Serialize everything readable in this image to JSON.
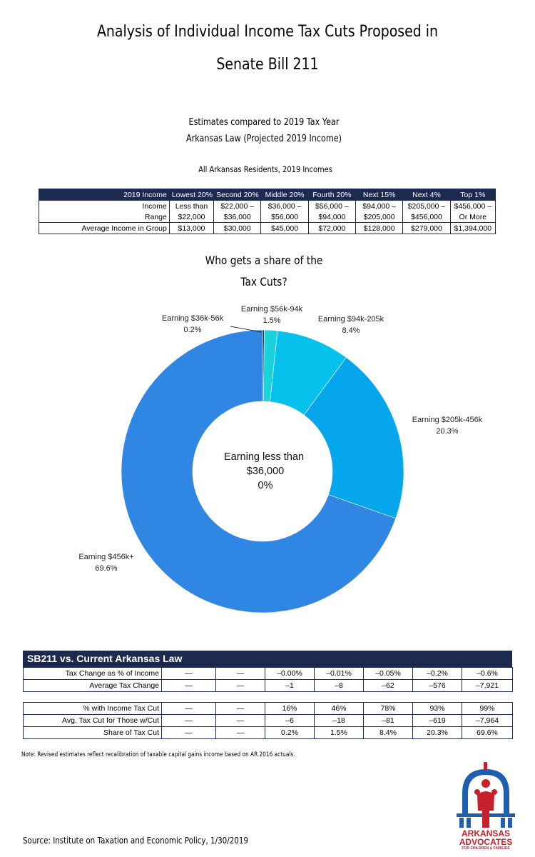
{
  "title": {
    "line1": "Analysis of Individual Income Tax Cuts Proposed in",
    "line2": "Senate Bill 211"
  },
  "subtitle": {
    "line1": "Estimates compared to 2019 Tax Year",
    "line2": "Arkansas Law (Projected 2019 Income)",
    "line3": "All Arkansas Residents, 2019 Incomes"
  },
  "income_table": {
    "header": [
      "2019 Income",
      "Lowest 20%",
      "Second 20%",
      "Middle 20%",
      "Fourth 20%",
      "Next 15%",
      "Next 4%",
      "Top 1%"
    ],
    "rows": [
      [
        "Income",
        "Less than",
        "$22,000 –",
        "$36,000 –",
        "$56,000 –",
        "$94,000 –",
        "$205,000 –",
        "$456,000 –"
      ],
      [
        "Range",
        "$22,000",
        "$36,000",
        "$56,000",
        "$94,000",
        "$205,000",
        "$456,000",
        "Or More"
      ],
      [
        "Average Income in Group",
        "$13,000",
        "$30,000",
        "$45,000",
        "$72,000",
        "$128,000",
        "$279,000",
        "$1,394,000"
      ]
    ]
  },
  "chart_title": {
    "line1": "Who gets a share of the",
    "line2": "Tax Cuts?"
  },
  "chart_data": {
    "type": "pie",
    "donut": true,
    "categories": [
      "Earning less than $36,000",
      "Earning $36k-56k",
      "Earning $56k-94k",
      "Earning $94k-205k",
      "Earning $205k-456k",
      "Earning $456k+"
    ],
    "values": [
      0,
      0.2,
      1.5,
      8.4,
      20.3,
      69.6
    ],
    "labels": [
      {
        "name": "Earning $36k-56k",
        "value": "0.2%"
      },
      {
        "name": "Earning $56k-94k",
        "value": "1.5%"
      },
      {
        "name": "Earning $94k-205k",
        "value": "8.4%"
      },
      {
        "name": "Earning $205k-456k",
        "value": "20.3%"
      },
      {
        "name": "Earning $456k+",
        "value": "69.6%"
      }
    ],
    "center_label": {
      "line1": "Earning less than",
      "line2": "$36,000",
      "line3": "0%"
    },
    "colors": [
      "#7a1f2b",
      "#1e2f5a",
      "#1ad3d9",
      "#06c1ec",
      "#05a6ec",
      "#2f87e3"
    ]
  },
  "sb211_table": {
    "title": "SB211 vs. Current Arkansas Law",
    "rows_a": [
      [
        "Tax Change as % of Income",
        "—",
        "—",
        "–0.00%",
        "–0.01%",
        "–0.05%",
        "–0.2%",
        "–0.6%"
      ],
      [
        "Average Tax Change",
        "—",
        "—",
        "–1",
        "–8",
        "–62",
        "–576",
        "–7,921"
      ]
    ],
    "rows_b": [
      [
        "% with Income Tax Cut",
        "—",
        "—",
        "16%",
        "46%",
        "78%",
        "93%",
        "99%"
      ],
      [
        "Avg. Tax Cut for Those w/Cut",
        "—",
        "—",
        "–6",
        "–18",
        "–81",
        "–619",
        "–7,964"
      ],
      [
        "Share of Tax Cut",
        "—",
        "—",
        "0.2%",
        "1.5%",
        "8.4%",
        "20.3%",
        "69.6%"
      ]
    ]
  },
  "note": "Note: Revised estimates reflect recalibration of taxable capital gains income based on AR 2016 actuals.",
  "source": "Source: Institute on Taxation and Economic Policy, 1/30/2019",
  "logo": {
    "line1": "ARKANSAS",
    "line2": "ADVOCATES",
    "line3": "FOR CHILDREN & FAMILIES"
  }
}
